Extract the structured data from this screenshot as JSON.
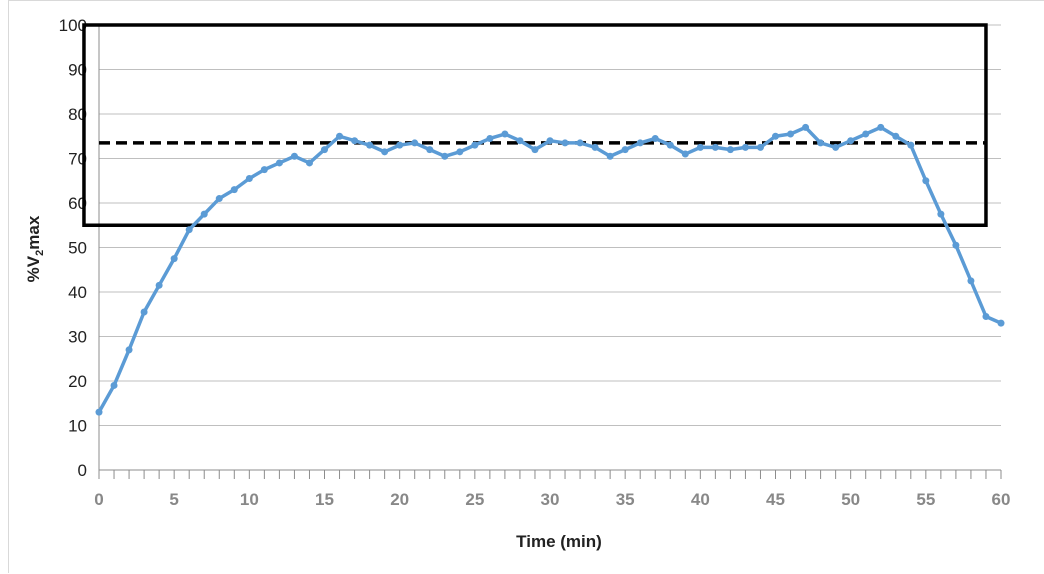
{
  "chart_data": {
    "type": "line",
    "title": "",
    "xlabel": "Time (min)",
    "ylabel": "%VO2max",
    "ylabel_parts": {
      "prefix": "%V",
      "sub": "2",
      "suffix": "max",
      "dot_over_v": true
    },
    "xlim": [
      0,
      60
    ],
    "ylim": [
      0,
      100
    ],
    "x_ticks": [
      0,
      5,
      10,
      15,
      20,
      25,
      30,
      35,
      40,
      45,
      50,
      55,
      60
    ],
    "y_ticks": [
      0,
      10,
      20,
      30,
      40,
      50,
      60,
      70,
      80,
      90,
      100
    ],
    "grid": "horizontal",
    "legend": "none",
    "colors": {
      "series": "#5b9bd5",
      "threshold": "#000000",
      "box": "#000000",
      "grid": "#bfbfbf"
    },
    "threshold_line": {
      "y": 73.5,
      "x_range": [
        0,
        59
      ],
      "style": "dashed"
    },
    "highlight_box": {
      "x_range": [
        -1,
        59
      ],
      "y_range": [
        55,
        100
      ]
    },
    "series": [
      {
        "x": [
          0,
          1,
          2,
          3,
          4,
          5,
          6,
          7,
          8,
          9,
          10,
          11,
          12,
          13,
          14,
          15,
          16,
          17,
          18,
          19,
          20,
          21,
          22,
          23,
          24,
          25,
          26,
          27,
          28,
          29,
          30,
          31,
          32,
          33,
          34,
          35,
          36,
          37,
          38,
          39,
          40,
          41,
          42,
          43,
          44,
          45,
          46,
          47,
          48,
          49,
          50,
          51,
          52,
          53,
          54,
          55,
          56,
          57,
          58,
          59,
          60
        ],
        "values": [
          13,
          19,
          27,
          35.5,
          41.5,
          47.5,
          54,
          57.5,
          61,
          63,
          65.5,
          67.5,
          69,
          70.5,
          69,
          72,
          75,
          74,
          73,
          71.5,
          73,
          73.5,
          72,
          70.5,
          71.5,
          73,
          74.5,
          75.5,
          74,
          72,
          74,
          73.5,
          73.5,
          72.5,
          70.5,
          72,
          73.5,
          74.5,
          73,
          71,
          72.5,
          72.5,
          72,
          72.5,
          72.5,
          75,
          75.5,
          77,
          73.5,
          72.5,
          74,
          75.5,
          77,
          75,
          73,
          65,
          57.5,
          50.5,
          42.5,
          34.5,
          33
        ]
      }
    ]
  }
}
